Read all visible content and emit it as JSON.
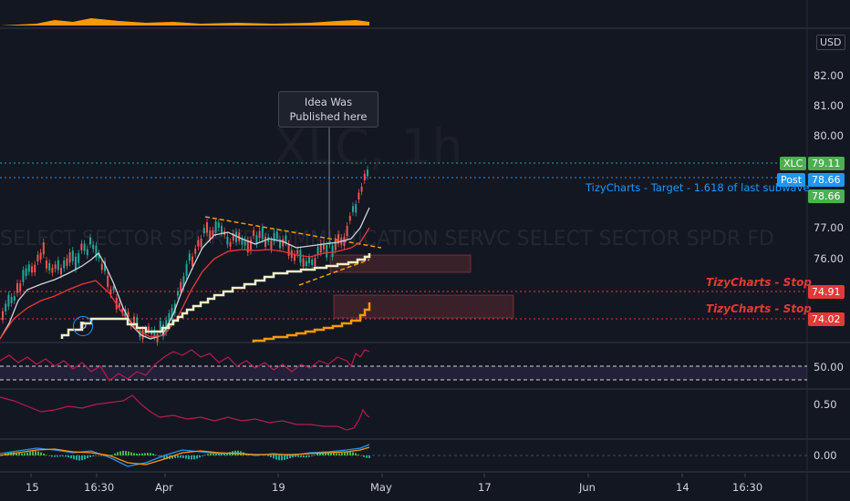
{
  "header": {
    "watermark_symbol": "XLC, 1h",
    "watermark_description": "SELECT SECTOR SPDR TR COMMUNICATION SERVC SELECT SECTOR SPDR FD"
  },
  "price_axis": {
    "currency": "USD",
    "labels": [
      "82.00",
      "81.00",
      "80.00",
      "77.00",
      "76.00"
    ]
  },
  "tags": {
    "xlc_label": "XLC",
    "xlc_price": "79.11",
    "post_label": "Post",
    "post_price": "78.66",
    "target_price": "78.66",
    "stop1_price": "74.91",
    "stop2_price": "74.02"
  },
  "annotations": {
    "target_text": "TizyCharts - Target - 1.618 of last subwave",
    "stop1_text": "TizyCharts - Stop",
    "stop2_text": "TizyCharts - Stop",
    "callout": "Idea Was Published here",
    "dividend_marker": "D"
  },
  "indicators": {
    "rsi_level": "50.00",
    "osc_level": "0.50",
    "macd_level": "0.00"
  },
  "time_axis": [
    "15",
    "16:30",
    "Apr",
    "19",
    "May",
    "17",
    "Jun",
    "14",
    "16:30"
  ],
  "colors": {
    "background": "#131722",
    "up": "#26a69a",
    "down": "#ef5350",
    "target_blue": "#2196f3",
    "stop_red": "#e53935",
    "xlc_green": "#4caf50",
    "orange": "#ff9800"
  }
}
